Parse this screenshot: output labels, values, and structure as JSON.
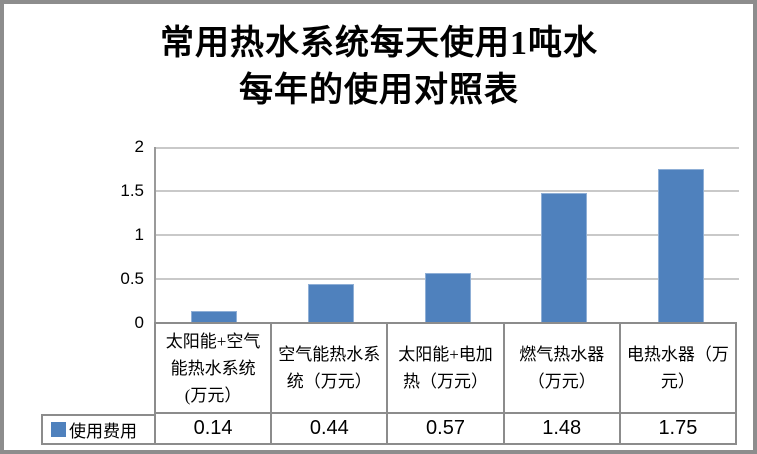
{
  "title": {
    "line1": "常用热水系统每天使用1吨水",
    "line2": "每年的使用对照表"
  },
  "y_axis": {
    "tick_labels_top_to_bottom": [
      "2",
      "1.5",
      "1",
      "0.5",
      "0"
    ]
  },
  "legend": {
    "label": "使用费用"
  },
  "colors": {
    "bar_fill": "#4f81bd",
    "bar_border": "#8fafd6",
    "gridline": "#c9c9c9",
    "table_border": "#8c8c8c",
    "frame": "#8d8d8d"
  },
  "chart_data": {
    "type": "bar",
    "title": "常用热水系统每天使用1吨水每年的使用对照表",
    "categories": [
      "太阳能+空气能热水系统(万元）",
      "空气能热水系统（万元）",
      "太阳能+电加热（万元）",
      "燃气热水器（万元）",
      "电热水器（万元）"
    ],
    "series": [
      {
        "name": "使用费用",
        "values": [
          0.14,
          0.44,
          0.57,
          1.48,
          1.75
        ]
      }
    ],
    "values_display": [
      "0.14",
      "0.44",
      "0.57",
      "1.48",
      "1.75"
    ],
    "xlabel": "",
    "ylabel": "",
    "ylim": [
      0,
      2
    ],
    "yticks": [
      0,
      0.5,
      1,
      1.5,
      2
    ],
    "grid": true,
    "legend_position": "table-bottom-left",
    "bar_color": "#4f81bd"
  }
}
